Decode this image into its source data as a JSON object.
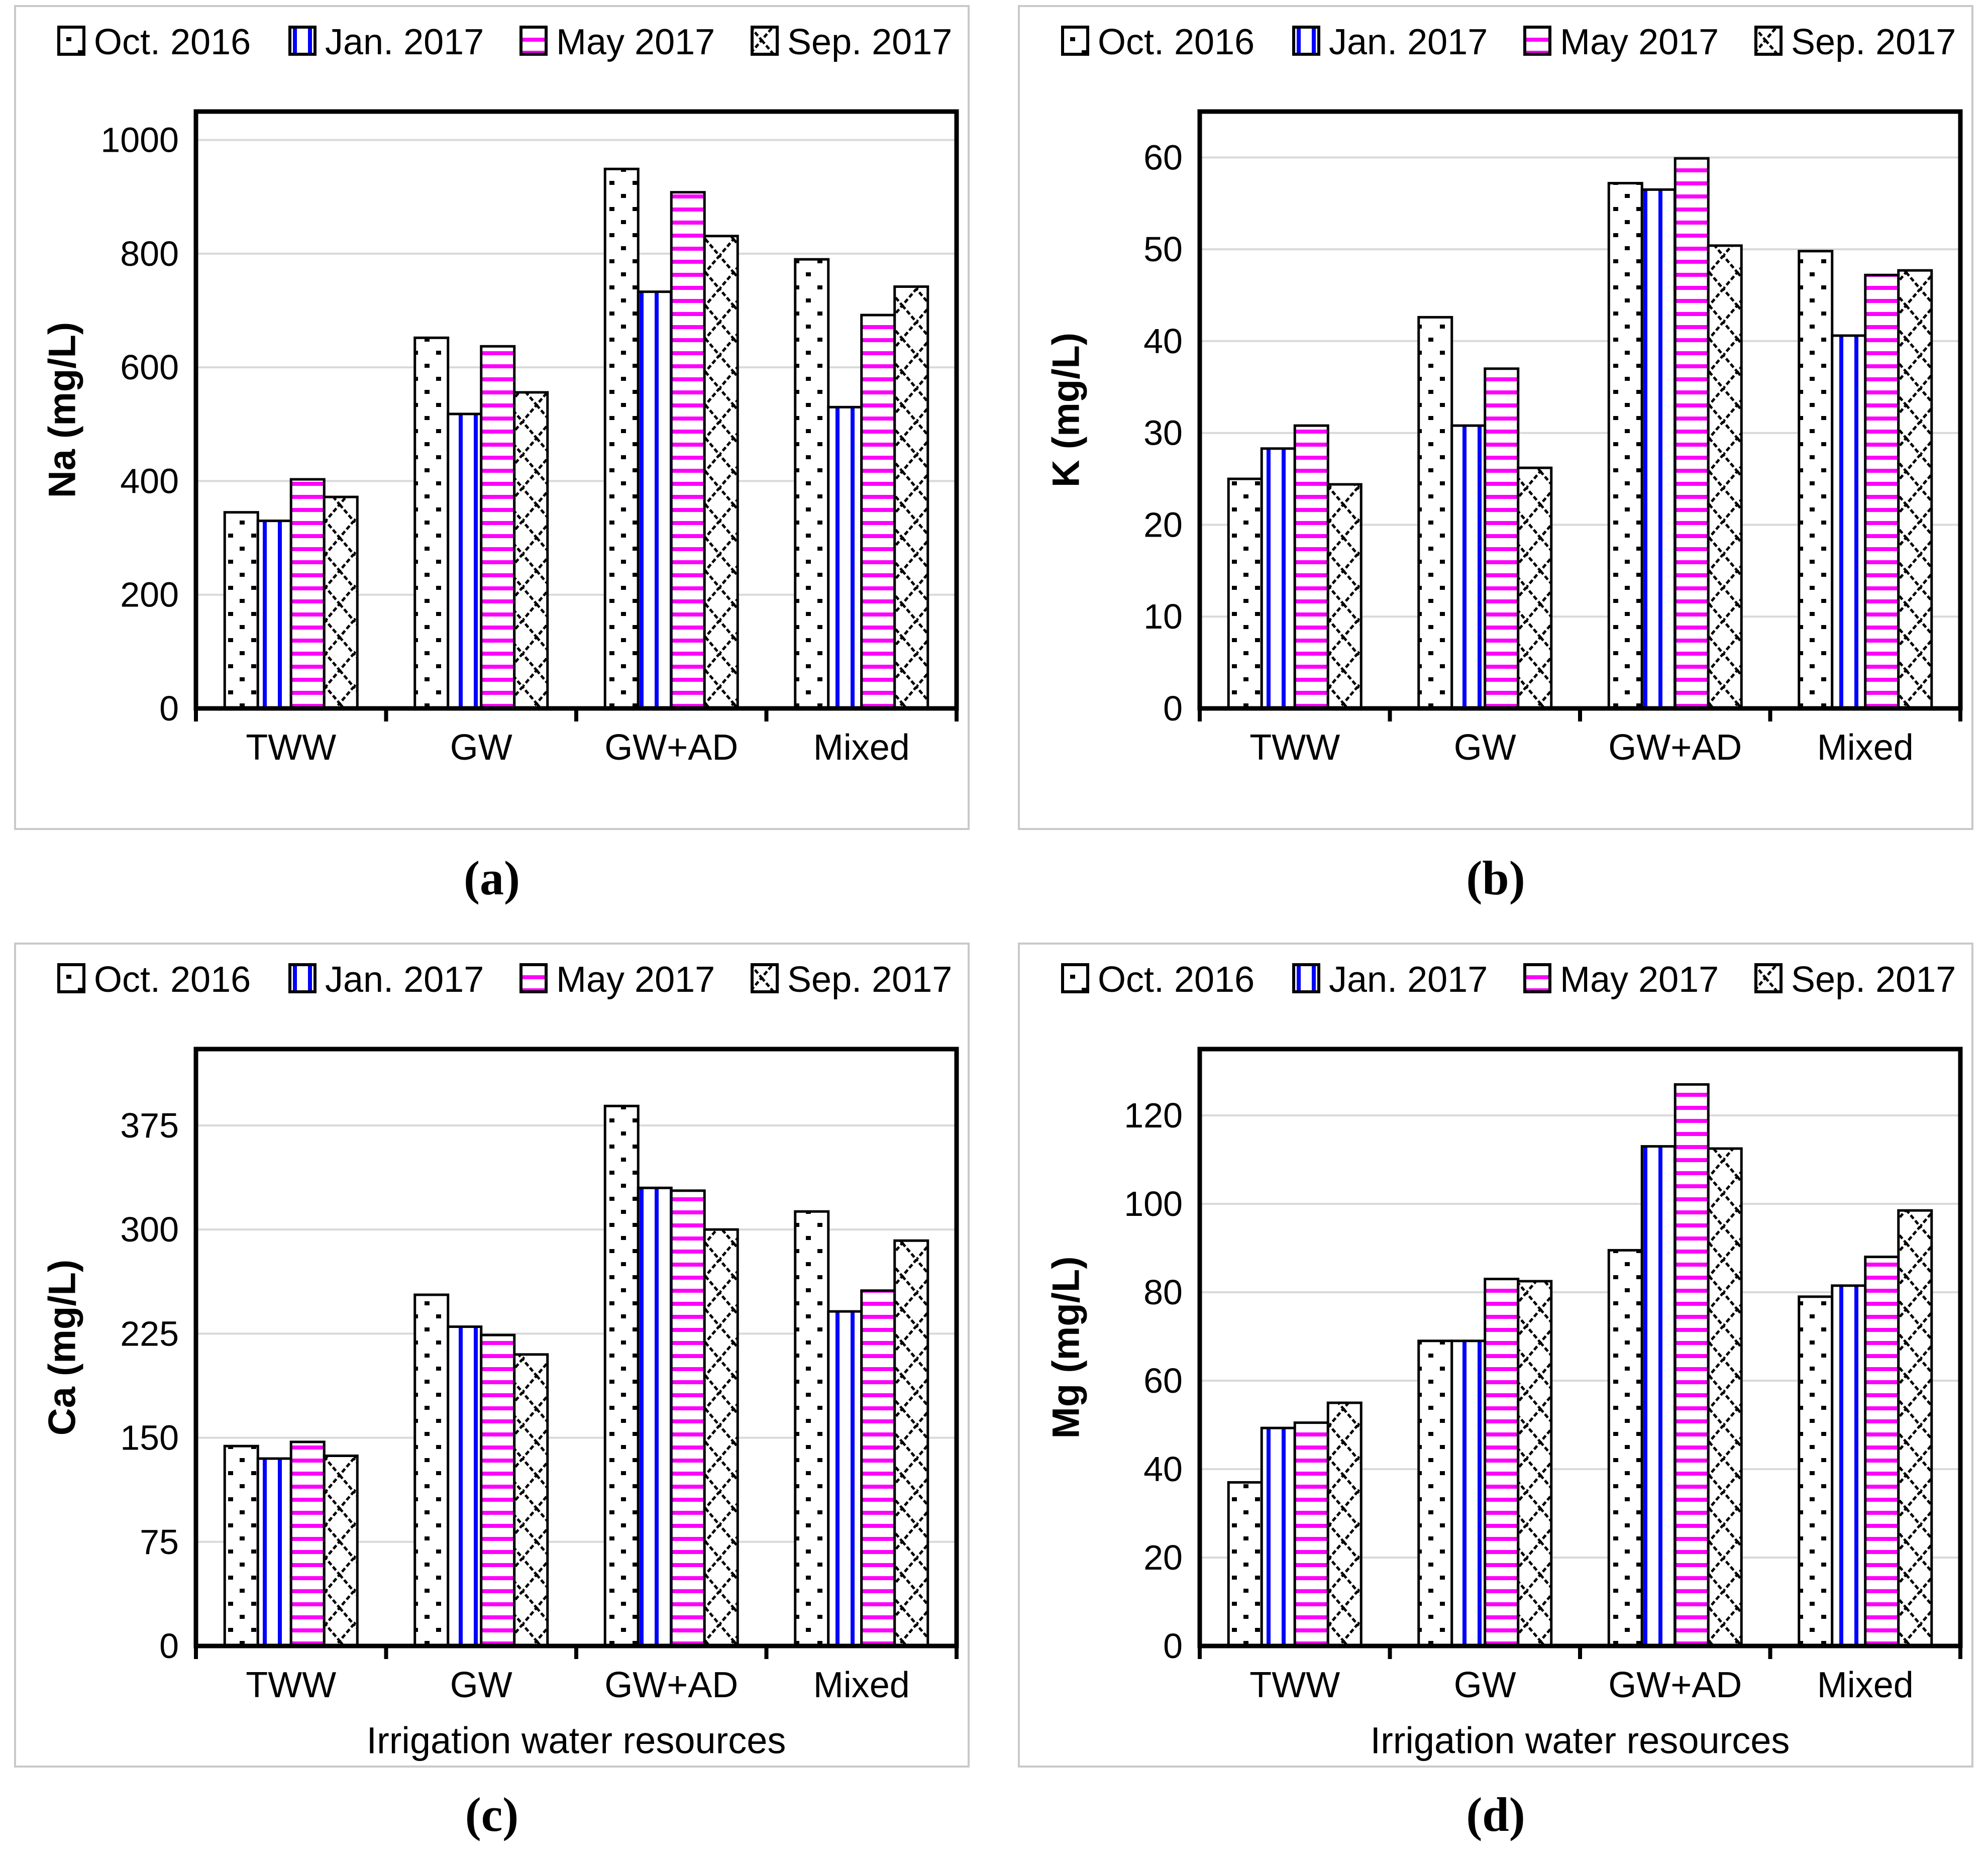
{
  "figure": {
    "x_categories": [
      "TWW",
      "GW",
      "GW+AD",
      "Mixed"
    ],
    "x_axis_title": "Irrigation water resources",
    "colors": {
      "axis": "#000000",
      "gridline": "#d9d9d9",
      "bar_outline": "#000000",
      "oct_pattern": "#000000",
      "jan_pattern": "#0000ff",
      "may_pattern": "#ff00ff",
      "sep_pattern": "#000000",
      "panel_frame": "#c9c9c9"
    },
    "legend": [
      {
        "label": "Oct. 2016",
        "pattern": "dots"
      },
      {
        "label": "Jan. 2017",
        "pattern": "vlines"
      },
      {
        "label": "May 2017",
        "pattern": "hlines"
      },
      {
        "label": "Sep. 2017",
        "pattern": "diamonds"
      }
    ]
  },
  "chart_data": [
    {
      "id": "a",
      "type": "bar",
      "caption": "(a)",
      "ylabel": "Na (mg/L)",
      "xlabel": "",
      "categories": [
        "TWW",
        "GW",
        "GW+AD",
        "Mixed"
      ],
      "ylim": [
        0,
        1050
      ],
      "yticks": [
        0,
        200,
        400,
        600,
        800,
        1000
      ],
      "grid": true,
      "legend_position": "top",
      "series": [
        {
          "name": "Oct. 2016",
          "pattern": "dots",
          "values": [
            345,
            652,
            949,
            790
          ]
        },
        {
          "name": "Jan. 2017",
          "pattern": "vlines",
          "values": [
            330,
            518,
            733,
            530
          ]
        },
        {
          "name": "May 2017",
          "pattern": "hlines",
          "values": [
            403,
            637,
            908,
            692
          ]
        },
        {
          "name": "Sep. 2017",
          "pattern": "diamonds",
          "values": [
            372,
            556,
            831,
            742
          ]
        }
      ]
    },
    {
      "id": "b",
      "type": "bar",
      "caption": "(b)",
      "ylabel": "K (mg/L)",
      "xlabel": "",
      "categories": [
        "TWW",
        "GW",
        "GW+AD",
        "Mixed"
      ],
      "ylim": [
        0,
        65
      ],
      "yticks": [
        0,
        10,
        20,
        30,
        40,
        50,
        60
      ],
      "grid": true,
      "legend_position": "top",
      "series": [
        {
          "name": "Oct. 2016",
          "pattern": "dots",
          "values": [
            25.0,
            42.6,
            57.2,
            49.8
          ]
        },
        {
          "name": "Jan. 2017",
          "pattern": "vlines",
          "values": [
            28.3,
            30.8,
            56.5,
            40.6
          ]
        },
        {
          "name": "May 2017",
          "pattern": "hlines",
          "values": [
            30.8,
            37.0,
            59.9,
            47.2
          ]
        },
        {
          "name": "Sep. 2017",
          "pattern": "diamonds",
          "values": [
            24.4,
            26.2,
            50.4,
            47.7
          ]
        }
      ]
    },
    {
      "id": "c",
      "type": "bar",
      "caption": "(c)",
      "ylabel": "Ca (mg/L)",
      "xlabel": "Irrigation water resources",
      "categories": [
        "TWW",
        "GW",
        "GW+AD",
        "Mixed"
      ],
      "ylim": [
        0,
        430
      ],
      "yticks": [
        0,
        75,
        150,
        225,
        300,
        375
      ],
      "grid": true,
      "legend_position": "top",
      "series": [
        {
          "name": "Oct. 2016",
          "pattern": "dots",
          "values": [
            144,
            253,
            389,
            313
          ]
        },
        {
          "name": "Jan. 2017",
          "pattern": "vlines",
          "values": [
            135,
            230,
            330,
            241
          ]
        },
        {
          "name": "May 2017",
          "pattern": "hlines",
          "values": [
            147,
            224,
            328,
            256
          ]
        },
        {
          "name": "Sep. 2017",
          "pattern": "diamonds",
          "values": [
            137,
            210,
            300,
            292
          ]
        }
      ]
    },
    {
      "id": "d",
      "type": "bar",
      "caption": "(d)",
      "ylabel": "Mg (mg/L)",
      "xlabel": "Irrigation water resources",
      "categories": [
        "TWW",
        "GW",
        "GW+AD",
        "Mixed"
      ],
      "ylim": [
        0,
        135
      ],
      "yticks": [
        0,
        20,
        40,
        60,
        80,
        100,
        120
      ],
      "grid": true,
      "legend_position": "top",
      "series": [
        {
          "name": "Oct. 2016",
          "pattern": "dots",
          "values": [
            37.0,
            69.0,
            89.5,
            79.0
          ]
        },
        {
          "name": "Jan. 2017",
          "pattern": "vlines",
          "values": [
            49.3,
            69.0,
            113.0,
            81.5
          ]
        },
        {
          "name": "May 2017",
          "pattern": "hlines",
          "values": [
            50.5,
            83.0,
            127.0,
            88.0
          ]
        },
        {
          "name": "Sep. 2017",
          "pattern": "diamonds",
          "values": [
            55.0,
            82.5,
            112.5,
            98.5
          ]
        }
      ]
    }
  ]
}
